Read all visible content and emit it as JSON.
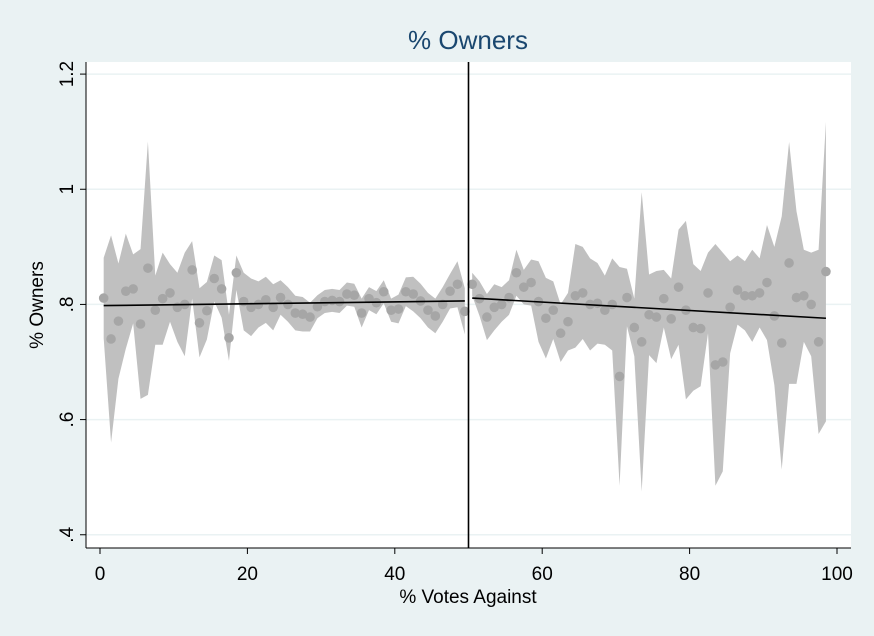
{
  "chart_data": {
    "type": "scatter",
    "title": "% Owners",
    "xlabel": "% Votes Against",
    "ylabel": "% Owners",
    "xlim": [
      -1.9,
      101.9
    ],
    "ylim": [
      0.377,
      1.221
    ],
    "xticks": [
      0,
      20,
      40,
      60,
      80,
      100
    ],
    "yticks": [
      {
        "value": 0.4,
        "label": ".4"
      },
      {
        "value": 0.6,
        "label": ".6"
      },
      {
        "value": 0.8,
        "label": ".8"
      },
      1,
      1.2
    ],
    "grid": true,
    "cutoff": 50,
    "band_color": "#c0c0c0",
    "series": [
      {
        "color": "#a6a6a6",
        "x": [
          0.5,
          1.5,
          2.5,
          3.5,
          4.5,
          5.5,
          6.5,
          7.5,
          8.5,
          9.5,
          10.5,
          11.5,
          12.5,
          13.5,
          14.5,
          15.5,
          16.5,
          17.5,
          18.5,
          19.5,
          20.5,
          21.5,
          22.5,
          23.5,
          24.5,
          25.5,
          26.5,
          27.5,
          28.5,
          29.5,
          30.5,
          31.5,
          32.5,
          33.5,
          34.5,
          35.5,
          36.5,
          37.5,
          38.5,
          39.5,
          40.5,
          41.5,
          42.5,
          43.5,
          44.5,
          45.5,
          46.5,
          47.5,
          48.5,
          49.5
        ],
        "values": [
          0.811,
          0.74,
          0.771,
          0.823,
          0.827,
          0.766,
          0.863,
          0.79,
          0.81,
          0.82,
          0.795,
          0.8,
          0.86,
          0.768,
          0.789,
          0.845,
          0.827,
          0.742,
          0.855,
          0.805,
          0.795,
          0.8,
          0.808,
          0.795,
          0.812,
          0.8,
          0.785,
          0.783,
          0.778,
          0.796,
          0.805,
          0.807,
          0.805,
          0.818,
          0.816,
          0.785,
          0.81,
          0.803,
          0.822,
          0.79,
          0.792,
          0.822,
          0.818,
          0.806,
          0.79,
          0.78,
          0.8,
          0.823,
          0.835,
          0.788
        ],
        "lower": [
          0.741,
          0.56,
          0.671,
          0.723,
          0.767,
          0.636,
          0.643,
          0.73,
          0.73,
          0.77,
          0.735,
          0.71,
          0.81,
          0.708,
          0.739,
          0.805,
          0.777,
          0.702,
          0.825,
          0.755,
          0.745,
          0.76,
          0.768,
          0.755,
          0.782,
          0.77,
          0.755,
          0.753,
          0.753,
          0.776,
          0.785,
          0.787,
          0.785,
          0.798,
          0.796,
          0.76,
          0.79,
          0.783,
          0.802,
          0.77,
          0.767,
          0.797,
          0.788,
          0.776,
          0.76,
          0.75,
          0.77,
          0.793,
          0.795,
          0.748
        ],
        "upper": [
          0.881,
          0.92,
          0.871,
          0.923,
          0.887,
          0.896,
          1.083,
          0.85,
          0.89,
          0.87,
          0.855,
          0.89,
          0.91,
          0.828,
          0.839,
          0.885,
          0.877,
          0.782,
          0.885,
          0.855,
          0.845,
          0.84,
          0.848,
          0.835,
          0.842,
          0.83,
          0.815,
          0.813,
          0.803,
          0.816,
          0.825,
          0.827,
          0.825,
          0.838,
          0.836,
          0.81,
          0.83,
          0.823,
          0.842,
          0.81,
          0.817,
          0.847,
          0.848,
          0.836,
          0.82,
          0.81,
          0.83,
          0.853,
          0.875,
          0.828
        ],
        "fit_x": [
          0.5,
          49.5
        ],
        "fit_y": [
          0.798,
          0.806
        ],
        "fit_color": "#000000"
      },
      {
        "color": "#a6a6a6",
        "x": [
          50.5,
          51.5,
          52.5,
          53.5,
          54.5,
          55.5,
          56.5,
          57.5,
          58.5,
          59.5,
          60.5,
          61.5,
          62.5,
          63.5,
          64.5,
          65.5,
          66.5,
          67.5,
          68.5,
          69.5,
          70.5,
          71.5,
          72.5,
          73.5,
          74.5,
          75.5,
          76.5,
          77.5,
          78.5,
          79.5,
          80.5,
          81.5,
          82.5,
          83.5,
          84.5,
          85.5,
          86.5,
          87.5,
          88.5,
          89.5,
          90.5,
          91.5,
          92.5,
          93.5,
          94.5,
          95.5,
          96.5,
          97.5,
          98.5
        ],
        "values": [
          0.835,
          0.81,
          0.778,
          0.795,
          0.8,
          0.812,
          0.855,
          0.83,
          0.838,
          0.805,
          0.776,
          0.79,
          0.75,
          0.77,
          0.815,
          0.82,
          0.8,
          0.802,
          0.79,
          0.8,
          0.675,
          0.812,
          0.76,
          0.735,
          0.782,
          0.778,
          0.81,
          0.775,
          0.83,
          0.79,
          0.76,
          0.758,
          0.82,
          0.695,
          0.7,
          0.795,
          0.825,
          0.815,
          0.815,
          0.82,
          0.838,
          0.78,
          0.733,
          0.872,
          0.812,
          0.815,
          0.8,
          0.735,
          0.857
        ],
        "lower": [
          0.815,
          0.78,
          0.738,
          0.755,
          0.77,
          0.782,
          0.815,
          0.8,
          0.798,
          0.735,
          0.706,
          0.74,
          0.7,
          0.72,
          0.725,
          0.74,
          0.72,
          0.732,
          0.73,
          0.72,
          0.485,
          0.762,
          0.71,
          0.475,
          0.712,
          0.698,
          0.76,
          0.705,
          0.73,
          0.635,
          0.65,
          0.658,
          0.75,
          0.485,
          0.51,
          0.715,
          0.765,
          0.755,
          0.735,
          0.76,
          0.738,
          0.66,
          0.513,
          0.662,
          0.662,
          0.735,
          0.71,
          0.575,
          0.597
        ],
        "upper": [
          0.855,
          0.84,
          0.818,
          0.835,
          0.83,
          0.842,
          0.895,
          0.86,
          0.878,
          0.875,
          0.846,
          0.84,
          0.8,
          0.82,
          0.905,
          0.9,
          0.88,
          0.872,
          0.85,
          0.88,
          0.865,
          0.862,
          0.81,
          0.995,
          0.852,
          0.858,
          0.86,
          0.845,
          0.93,
          0.945,
          0.87,
          0.858,
          0.89,
          0.905,
          0.89,
          0.875,
          0.885,
          0.875,
          0.895,
          0.88,
          0.938,
          0.9,
          0.953,
          1.082,
          0.962,
          0.895,
          0.89,
          0.895,
          1.117
        ],
        "fit_x": [
          50.5,
          98.5
        ],
        "fit_y": [
          0.811,
          0.776
        ],
        "fit_color": "#000000"
      }
    ]
  }
}
